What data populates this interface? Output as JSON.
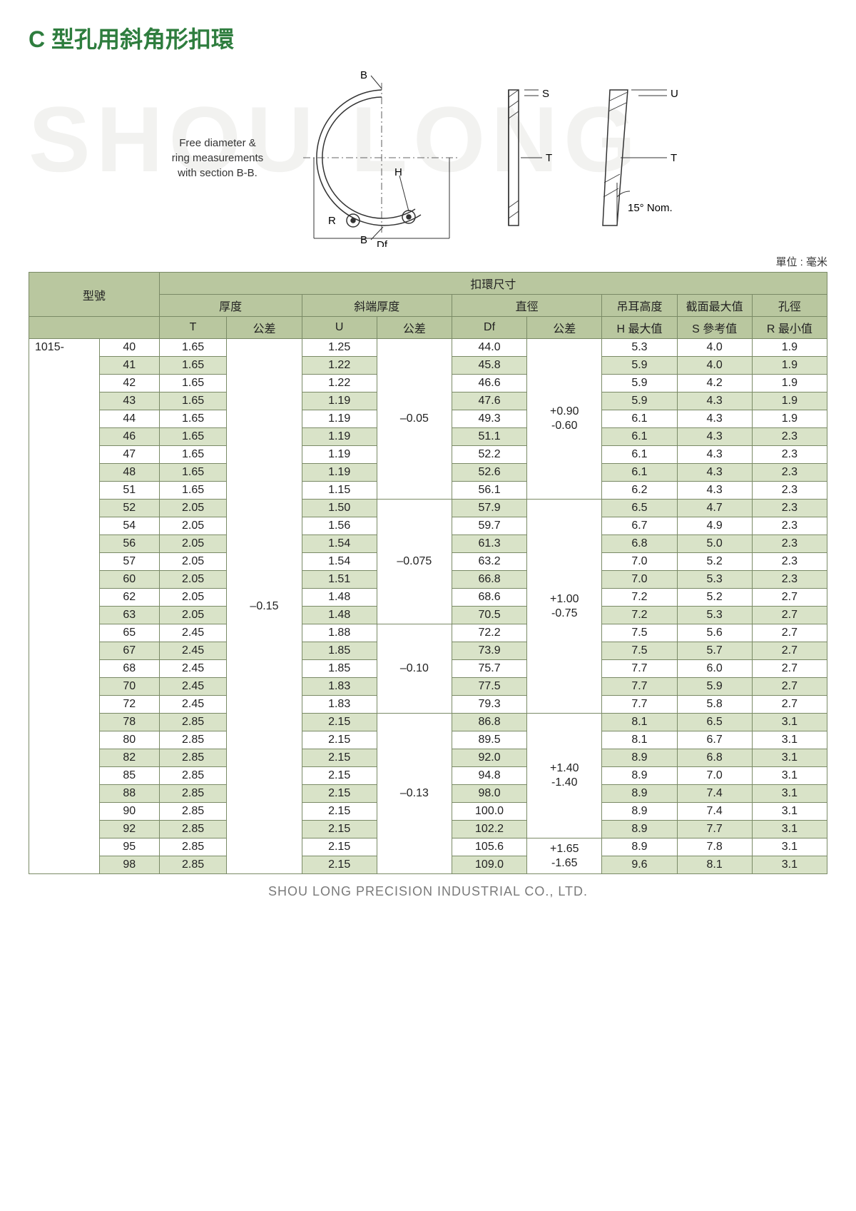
{
  "title": "C 型孔用斜角形扣環",
  "watermark": "SHOU LONG",
  "diagram": {
    "caption_l1": "Free diameter &",
    "caption_l2": "ring measurements",
    "caption_l3": "with section B-B.",
    "labels": {
      "B": "B",
      "S": "S",
      "H": "H",
      "R": "R",
      "Df": "Df",
      "T": "T",
      "U": "U",
      "angle": "15° Nom."
    }
  },
  "unit_label": "單位 : 毫米",
  "table_headers": {
    "model": "型號",
    "ring_dim": "扣環尺寸",
    "thickness": "厚度",
    "bevel_thickness": "斜端厚度",
    "diameter": "直徑",
    "lug_height": "吊耳高度",
    "section_max": "截面最大值",
    "hole_dia": "孔徑",
    "T": "T",
    "U": "U",
    "Df": "Df",
    "tol": "公差",
    "H_max": "H 最大值",
    "S_ref": "S 參考值",
    "R_min": "R 最小值"
  },
  "model_prefix": "1015-",
  "colors": {
    "title": "#2e7d3e",
    "header_bg": "#b9c79f",
    "shade_bg": "#d9e3c8",
    "border": "#7a8a66",
    "watermark": "#f2f2f0",
    "footer": "#7a7a7a"
  },
  "tol_T": "–0.15",
  "u_groups": [
    {
      "tol": "–0.05",
      "span": 9
    },
    {
      "tol": "–0.075",
      "span": 7
    },
    {
      "tol": "–0.10",
      "span": 5
    },
    {
      "tol": "–0.13",
      "span": 9
    }
  ],
  "df_groups": [
    {
      "tol_up": "+0.90",
      "tol_lo": "-0.60",
      "span": 9
    },
    {
      "tol_up": "+1.00",
      "tol_lo": "-0.75",
      "span": 12
    },
    {
      "tol_up": "+1.40",
      "tol_lo": "-1.40",
      "span": 7
    },
    {
      "tol_up": "+1.65",
      "tol_lo": "-1.65",
      "span": 2
    }
  ],
  "rows": [
    {
      "n": "40",
      "T": "1.65",
      "U": "1.25",
      "Df": "44.0",
      "H": "5.3",
      "S": "4.0",
      "R": "1.9",
      "shade": false
    },
    {
      "n": "41",
      "T": "1.65",
      "U": "1.22",
      "Df": "45.8",
      "H": "5.9",
      "S": "4.0",
      "R": "1.9",
      "shade": true
    },
    {
      "n": "42",
      "T": "1.65",
      "U": "1.22",
      "Df": "46.6",
      "H": "5.9",
      "S": "4.2",
      "R": "1.9",
      "shade": false
    },
    {
      "n": "43",
      "T": "1.65",
      "U": "1.19",
      "Df": "47.6",
      "H": "5.9",
      "S": "4.3",
      "R": "1.9",
      "shade": true
    },
    {
      "n": "44",
      "T": "1.65",
      "U": "1.19",
      "Df": "49.3",
      "H": "6.1",
      "S": "4.3",
      "R": "1.9",
      "shade": false
    },
    {
      "n": "46",
      "T": "1.65",
      "U": "1.19",
      "Df": "51.1",
      "H": "6.1",
      "S": "4.3",
      "R": "2.3",
      "shade": true
    },
    {
      "n": "47",
      "T": "1.65",
      "U": "1.19",
      "Df": "52.2",
      "H": "6.1",
      "S": "4.3",
      "R": "2.3",
      "shade": false
    },
    {
      "n": "48",
      "T": "1.65",
      "U": "1.19",
      "Df": "52.6",
      "H": "6.1",
      "S": "4.3",
      "R": "2.3",
      "shade": true
    },
    {
      "n": "51",
      "T": "1.65",
      "U": "1.15",
      "Df": "56.1",
      "H": "6.2",
      "S": "4.3",
      "R": "2.3",
      "shade": false
    },
    {
      "n": "52",
      "T": "2.05",
      "U": "1.50",
      "Df": "57.9",
      "H": "6.5",
      "S": "4.7",
      "R": "2.3",
      "shade": true
    },
    {
      "n": "54",
      "T": "2.05",
      "U": "1.56",
      "Df": "59.7",
      "H": "6.7",
      "S": "4.9",
      "R": "2.3",
      "shade": false
    },
    {
      "n": "56",
      "T": "2.05",
      "U": "1.54",
      "Df": "61.3",
      "H": "6.8",
      "S": "5.0",
      "R": "2.3",
      "shade": true
    },
    {
      "n": "57",
      "T": "2.05",
      "U": "1.54",
      "Df": "63.2",
      "H": "7.0",
      "S": "5.2",
      "R": "2.3",
      "shade": false
    },
    {
      "n": "60",
      "T": "2.05",
      "U": "1.51",
      "Df": "66.8",
      "H": "7.0",
      "S": "5.3",
      "R": "2.3",
      "shade": true
    },
    {
      "n": "62",
      "T": "2.05",
      "U": "1.48",
      "Df": "68.6",
      "H": "7.2",
      "S": "5.2",
      "R": "2.7",
      "shade": false
    },
    {
      "n": "63",
      "T": "2.05",
      "U": "1.48",
      "Df": "70.5",
      "H": "7.2",
      "S": "5.3",
      "R": "2.7",
      "shade": true
    },
    {
      "n": "65",
      "T": "2.45",
      "U": "1.88",
      "Df": "72.2",
      "H": "7.5",
      "S": "5.6",
      "R": "2.7",
      "shade": false
    },
    {
      "n": "67",
      "T": "2.45",
      "U": "1.85",
      "Df": "73.9",
      "H": "7.5",
      "S": "5.7",
      "R": "2.7",
      "shade": true
    },
    {
      "n": "68",
      "T": "2.45",
      "U": "1.85",
      "Df": "75.7",
      "H": "7.7",
      "S": "6.0",
      "R": "2.7",
      "shade": false
    },
    {
      "n": "70",
      "T": "2.45",
      "U": "1.83",
      "Df": "77.5",
      "H": "7.7",
      "S": "5.9",
      "R": "2.7",
      "shade": true
    },
    {
      "n": "72",
      "T": "2.45",
      "U": "1.83",
      "Df": "79.3",
      "H": "7.7",
      "S": "5.8",
      "R": "2.7",
      "shade": false
    },
    {
      "n": "78",
      "T": "2.85",
      "U": "2.15",
      "Df": "86.8",
      "H": "8.1",
      "S": "6.5",
      "R": "3.1",
      "shade": true
    },
    {
      "n": "80",
      "T": "2.85",
      "U": "2.15",
      "Df": "89.5",
      "H": "8.1",
      "S": "6.7",
      "R": "3.1",
      "shade": false
    },
    {
      "n": "82",
      "T": "2.85",
      "U": "2.15",
      "Df": "92.0",
      "H": "8.9",
      "S": "6.8",
      "R": "3.1",
      "shade": true
    },
    {
      "n": "85",
      "T": "2.85",
      "U": "2.15",
      "Df": "94.8",
      "H": "8.9",
      "S": "7.0",
      "R": "3.1",
      "shade": false
    },
    {
      "n": "88",
      "T": "2.85",
      "U": "2.15",
      "Df": "98.0",
      "H": "8.9",
      "S": "7.4",
      "R": "3.1",
      "shade": true
    },
    {
      "n": "90",
      "T": "2.85",
      "U": "2.15",
      "Df": "100.0",
      "H": "8.9",
      "S": "7.4",
      "R": "3.1",
      "shade": false
    },
    {
      "n": "92",
      "T": "2.85",
      "U": "2.15",
      "Df": "102.2",
      "H": "8.9",
      "S": "7.7",
      "R": "3.1",
      "shade": true
    },
    {
      "n": "95",
      "T": "2.85",
      "U": "2.15",
      "Df": "105.6",
      "H": "8.9",
      "S": "7.8",
      "R": "3.1",
      "shade": false
    },
    {
      "n": "98",
      "T": "2.85",
      "U": "2.15",
      "Df": "109.0",
      "H": "9.6",
      "S": "8.1",
      "R": "3.1",
      "shade": true
    }
  ],
  "footer": "SHOU LONG PRECISION INDUSTRIAL CO., LTD."
}
